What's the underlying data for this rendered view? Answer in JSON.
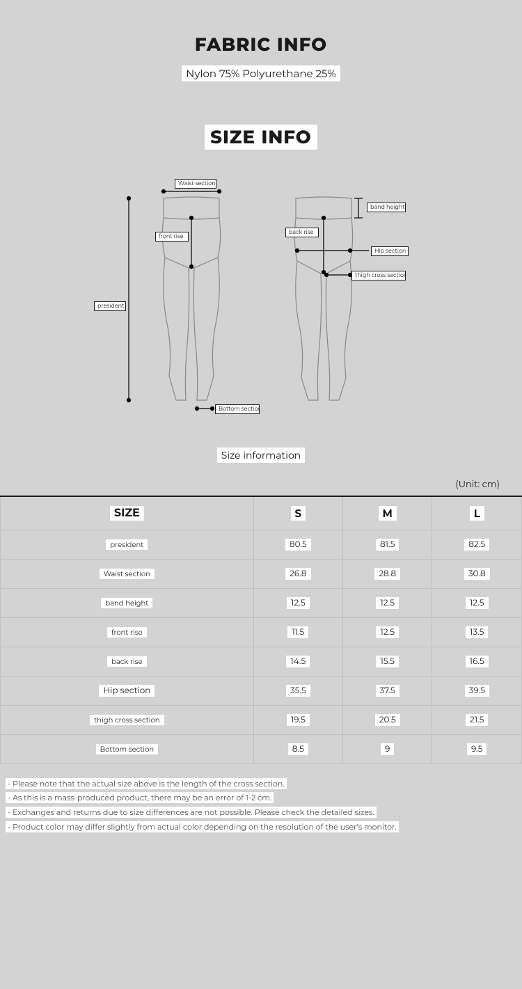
{
  "fabric_info": {
    "title": "FABRIC INFO",
    "composition": "Nylon 75% Polyurethane 25%"
  },
  "size_info": {
    "title": "SIZE INFO",
    "label": "Size information",
    "unit": "(Unit: cm)"
  },
  "diagram_labels": {
    "waist_section": "Waist section",
    "front_rise": "front rise",
    "president": "president",
    "bottom_section": "Bottom section",
    "back_rise": "back rise",
    "band_height": "band height",
    "hip_section": "Hip section",
    "thigh_cross_section": "thigh cross section"
  },
  "table": {
    "columns": [
      "SIZE",
      "S",
      "M",
      "L"
    ],
    "rows": [
      {
        "label": "president",
        "values": [
          "80.5",
          "81.5",
          "82.5"
        ]
      },
      {
        "label": "Waist section",
        "values": [
          "26.8",
          "28.8",
          "30.8"
        ]
      },
      {
        "label": "band height",
        "values": [
          "12.5",
          "12.5",
          "12.5"
        ]
      },
      {
        "label": "front rise",
        "values": [
          "11.5",
          "12.5",
          "13.5"
        ]
      },
      {
        "label": "back rise",
        "values": [
          "14.5",
          "15.5",
          "16.5"
        ]
      },
      {
        "label": "Hip section",
        "values": [
          "35.5",
          "37.5",
          "39.5"
        ]
      },
      {
        "label": "thigh cross section",
        "values": [
          "19.5",
          "20.5",
          "21.5"
        ]
      },
      {
        "label": "Bottom section",
        "values": [
          "8.5",
          "9",
          "9.5"
        ]
      }
    ]
  },
  "notes": [
    "- Please note that the actual size above is the length of the cross section.",
    "- As this is a mass-produced product, there may be an error of 1-2 cm.",
    "- Exchanges and returns due to size differences are not possible. Please check the detailed sizes.",
    "- Product color may differ slightly from actual color depending on the resolution of the user's monitor."
  ],
  "colors": {
    "background": "#d3d3d3",
    "text": "#1a1a1a",
    "border": "#c0c0c0",
    "highlight": "#ffffff",
    "note_text": "#4a4a4a"
  }
}
